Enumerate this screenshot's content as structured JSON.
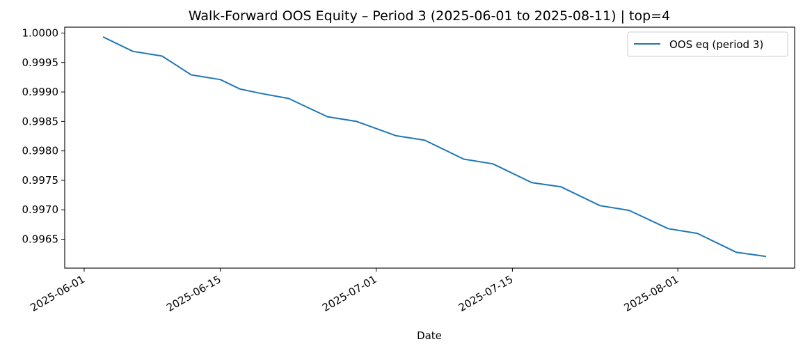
{
  "chart_data": {
    "type": "line",
    "title": "Walk-Forward OOS Equity – Period 3 (2025-06-01 to 2025-08-11) | top=4",
    "xlabel": "Date",
    "ylabel": "",
    "xlim": [
      "2025-05-30",
      "2025-08-13"
    ],
    "ylim": [
      0.99601,
      1.0001
    ],
    "x_ticks": [
      "2025-06-01",
      "2025-06-15",
      "2025-07-01",
      "2025-07-15",
      "2025-08-01"
    ],
    "y_ticks": [
      "0.9965",
      "0.9970",
      "0.9975",
      "0.9980",
      "0.9985",
      "0.9990",
      "0.9995",
      "1.0000"
    ],
    "legend": {
      "position": "top-right",
      "entries": [
        "OOS eq (period 3)"
      ]
    },
    "grid": false,
    "colors": {
      "line": "#1f77b4"
    },
    "series": [
      {
        "name": "OOS eq (period 3)",
        "x": [
          "2025-06-03",
          "2025-06-06",
          "2025-06-09",
          "2025-06-12",
          "2025-06-15",
          "2025-06-17",
          "2025-06-19",
          "2025-06-22",
          "2025-06-26",
          "2025-06-29",
          "2025-07-03",
          "2025-07-06",
          "2025-07-10",
          "2025-07-13",
          "2025-07-17",
          "2025-07-20",
          "2025-07-24",
          "2025-07-27",
          "2025-07-31",
          "2025-08-03",
          "2025-08-07",
          "2025-08-10"
        ],
        "values": [
          0.99993,
          0.99969,
          0.99961,
          0.99929,
          0.99921,
          0.99905,
          0.99898,
          0.99889,
          0.99858,
          0.9985,
          0.99826,
          0.99818,
          0.99786,
          0.99778,
          0.99746,
          0.99739,
          0.99707,
          0.99699,
          0.99668,
          0.9966,
          0.99628,
          0.99621
        ]
      }
    ]
  }
}
